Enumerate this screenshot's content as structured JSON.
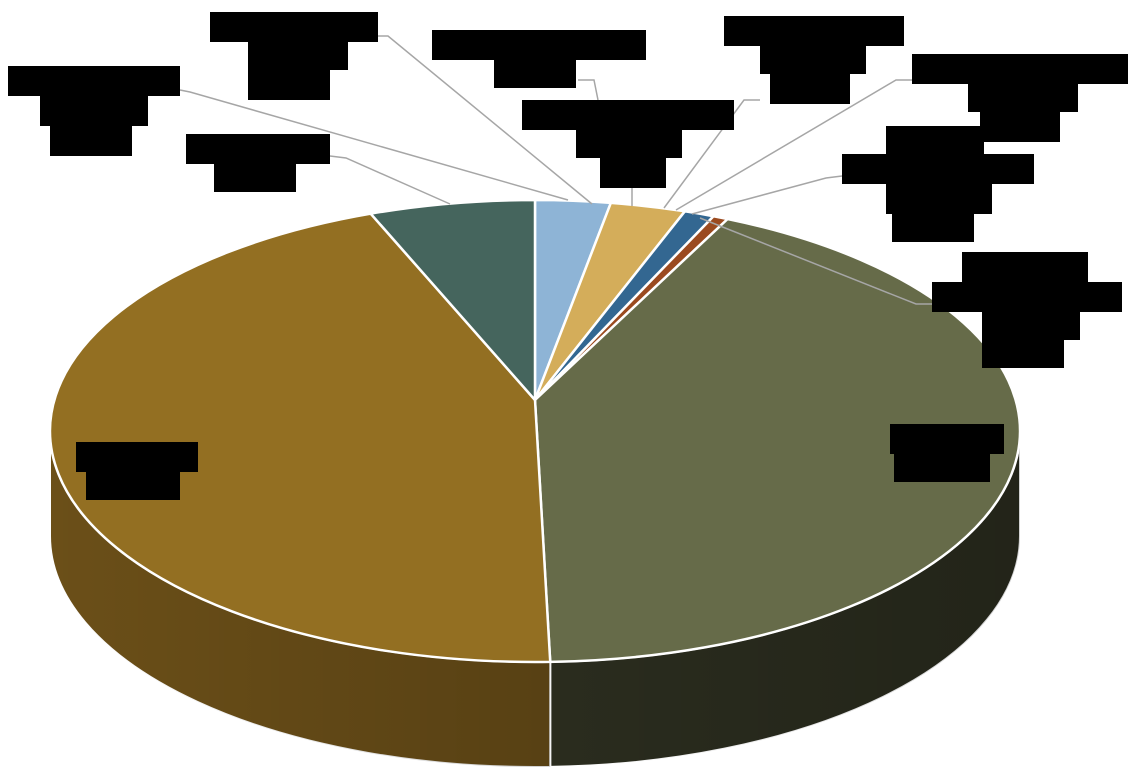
{
  "chart_data": {
    "type": "pie",
    "categories": [
      null,
      null,
      null,
      null,
      null,
      null,
      null
    ],
    "values": [
      2.5,
      2.5,
      1,
      0.5,
      43,
      45,
      5.5
    ],
    "colors": [
      "#8eb4d6",
      "#d4ad5a",
      "#336791",
      "#9b4a1f",
      "#666b49",
      "#936f22",
      "#45655d"
    ],
    "side_colors": [
      "#6f8da8",
      "#a88a47",
      "#264d6c",
      "#743716",
      "#2a2c1e",
      "#6b4f18",
      "#2f4641"
    ]
  }
}
